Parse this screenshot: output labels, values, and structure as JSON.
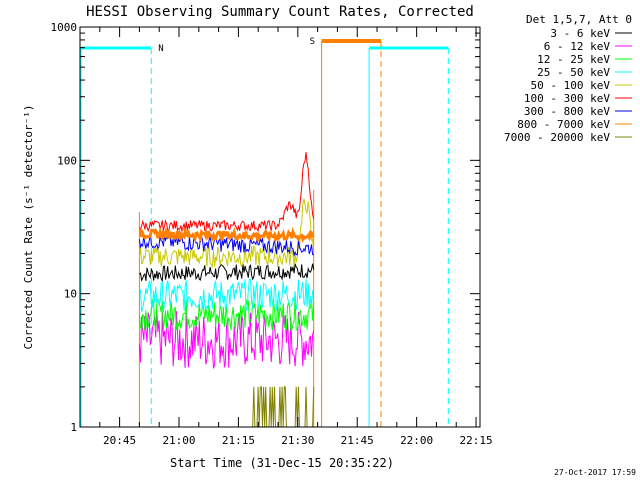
{
  "chart_data": {
    "type": "line",
    "title": "HESSI Observing Summary Count Rates, Corrected",
    "xlabel": "Start Time (31-Dec-15 20:35:22)",
    "ylabel": "Corrected Count Rate (s⁻¹ detector⁻¹)",
    "y_scale": "log",
    "ylim": [
      1,
      1000
    ],
    "xlim_minutes_utc": [
      "20:35",
      "22:16"
    ],
    "x_ticks": [
      "20:45",
      "21:00",
      "21:15",
      "21:30",
      "21:45",
      "22:00",
      "22:15"
    ],
    "y_ticks": [
      "1",
      "10",
      "100",
      "1000"
    ],
    "legend_title": "Det 1,5,7, Att 0",
    "legend_position": "top-right",
    "series": [
      {
        "name": "3 - 6 keV",
        "color": "#000000",
        "level_start": 14,
        "level_end": 15
      },
      {
        "name": "6 - 12 keV",
        "color": "#ff00ff",
        "level_start": 4.5,
        "level_end": 4.5
      },
      {
        "name": "12 - 25 keV",
        "color": "#00ff00",
        "level_start": 7,
        "level_end": 7
      },
      {
        "name": "25 - 50 keV",
        "color": "#00ffff",
        "level_start": 9.5,
        "level_end": 10
      },
      {
        "name": "50 - 100 keV",
        "color": "#c8c800",
        "level_start": 19,
        "level_end": 19
      },
      {
        "name": "100 - 300 keV",
        "color": "#ff0000",
        "level_start": 36,
        "level_end": 55
      },
      {
        "name": "300 - 800 keV",
        "color": "#0000ff",
        "level_start": 25,
        "level_end": 22
      },
      {
        "name": "800 - 7000 keV",
        "color": "#ff8000",
        "level_start": 28,
        "level_end": 27
      },
      {
        "name": "7000 - 20000 keV",
        "color": "#808000",
        "level_start": 1,
        "level_end": 1
      }
    ],
    "annotations": [
      {
        "text": "N",
        "color": "#00c8c8"
      },
      {
        "text": "S",
        "color": "#ff8000"
      }
    ],
    "timestamp": "27-Oct-2017 17:59"
  }
}
